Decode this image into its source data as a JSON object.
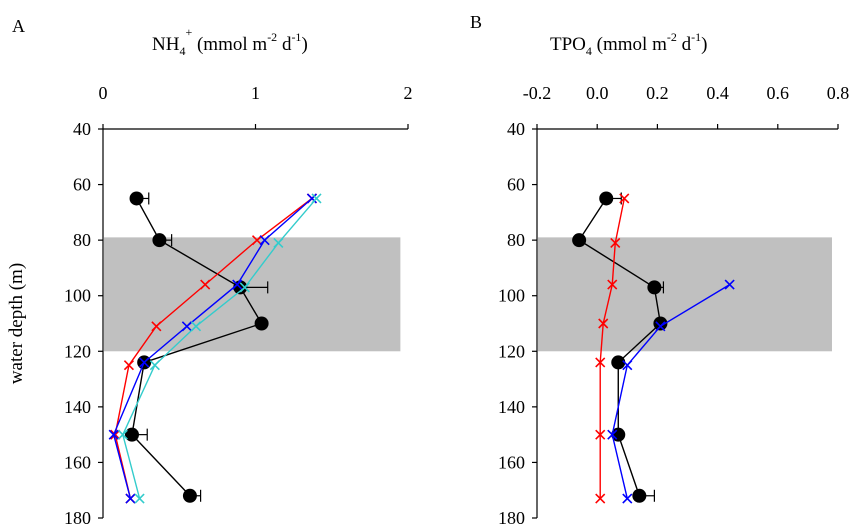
{
  "chart_data": [
    {
      "panel_label": "A",
      "type": "line",
      "xlabel": {
        "main": "NH",
        "sub": "4",
        "sup": "+",
        "rest_a": " (mmol  m",
        "sup2": "-2",
        "rest_b": " d",
        "sup3": "-1",
        "rest_c": ")"
      },
      "ylabel": "water depth (m)",
      "x_axis_position": "top",
      "xlim": [
        0,
        2
      ],
      "xticks": [
        0,
        1,
        2
      ],
      "ylim": [
        40,
        180
      ],
      "yticks": [
        40,
        60,
        80,
        100,
        120,
        140,
        160,
        180
      ],
      "y_inverted": true,
      "shaded_band": {
        "from": 79,
        "to": 120,
        "xto": 1.95,
        "color": "#c0c0c0"
      },
      "series": [
        {
          "color": "#000000",
          "marker": "circle",
          "x": [
            0.22,
            0.37,
            0.9,
            1.04,
            0.27,
            0.19,
            0.57
          ],
          "y": [
            65,
            80,
            97,
            110,
            124,
            150,
            172
          ],
          "err": [
            0.08,
            0.08,
            0.18,
            0.0,
            0.0,
            0.1,
            0.07
          ]
        },
        {
          "color": "#ff0000",
          "marker": "x",
          "x": [
            1.37,
            1.01,
            0.67,
            0.35,
            0.17,
            0.08,
            0.18
          ],
          "y": [
            65,
            80,
            96,
            111,
            125,
            150,
            173
          ]
        },
        {
          "color": "#0000ff",
          "marker": "x",
          "x": [
            1.37,
            1.06,
            0.88,
            0.55,
            0.27,
            0.07,
            0.18
          ],
          "y": [
            65,
            80,
            96,
            111,
            124,
            150,
            173
          ]
        },
        {
          "color": "#33cccc",
          "marker": "x",
          "x": [
            1.4,
            1.15,
            0.93,
            0.61,
            0.34,
            0.13,
            0.24
          ],
          "y": [
            65,
            81,
            97,
            111,
            125,
            150,
            173
          ]
        }
      ]
    },
    {
      "panel_label": "B",
      "type": "line",
      "xlabel": {
        "main": "TPO",
        "sub": "4",
        "sup": "",
        "rest_a": " (mmol  m",
        "sup2": "-2",
        "rest_b": " d",
        "sup3": "-1",
        "rest_c": ")"
      },
      "ylabel": "",
      "x_axis_position": "top",
      "xlim": [
        -0.2,
        0.8
      ],
      "xticks": [
        -0.2,
        0.0,
        0.2,
        0.4,
        0.6,
        0.8
      ],
      "xtick_labels": [
        "-0.2",
        "0.0",
        "0.2",
        "0.4",
        "0.6",
        "0.8"
      ],
      "ylim": [
        40,
        180
      ],
      "yticks": [
        40,
        60,
        80,
        100,
        120,
        140,
        160,
        180
      ],
      "y_inverted": true,
      "shaded_band": {
        "from": 79,
        "to": 120,
        "xto": 0.78,
        "color": "#c0c0c0"
      },
      "series": [
        {
          "color": "#000000",
          "marker": "circle",
          "x": [
            0.03,
            -0.06,
            0.19,
            0.21,
            0.07,
            0.07,
            0.14
          ],
          "y": [
            65,
            80,
            97,
            110,
            124,
            150,
            172
          ],
          "err": [
            0.05,
            0.0,
            0.03,
            0.0,
            0.0,
            0.0,
            0.05
          ]
        },
        {
          "color": "#ff0000",
          "marker": "x",
          "x": [
            0.09,
            0.06,
            0.05,
            0.02,
            0.01,
            0.01,
            0.01
          ],
          "y": [
            65,
            81,
            96,
            110,
            124,
            150,
            173
          ]
        },
        {
          "color": "#0000ff",
          "marker": "x",
          "x": [
            null,
            null,
            0.44,
            0.21,
            0.1,
            0.05,
            0.1
          ],
          "y": [
            65,
            80,
            96,
            111,
            125,
            150,
            173
          ]
        }
      ]
    }
  ]
}
